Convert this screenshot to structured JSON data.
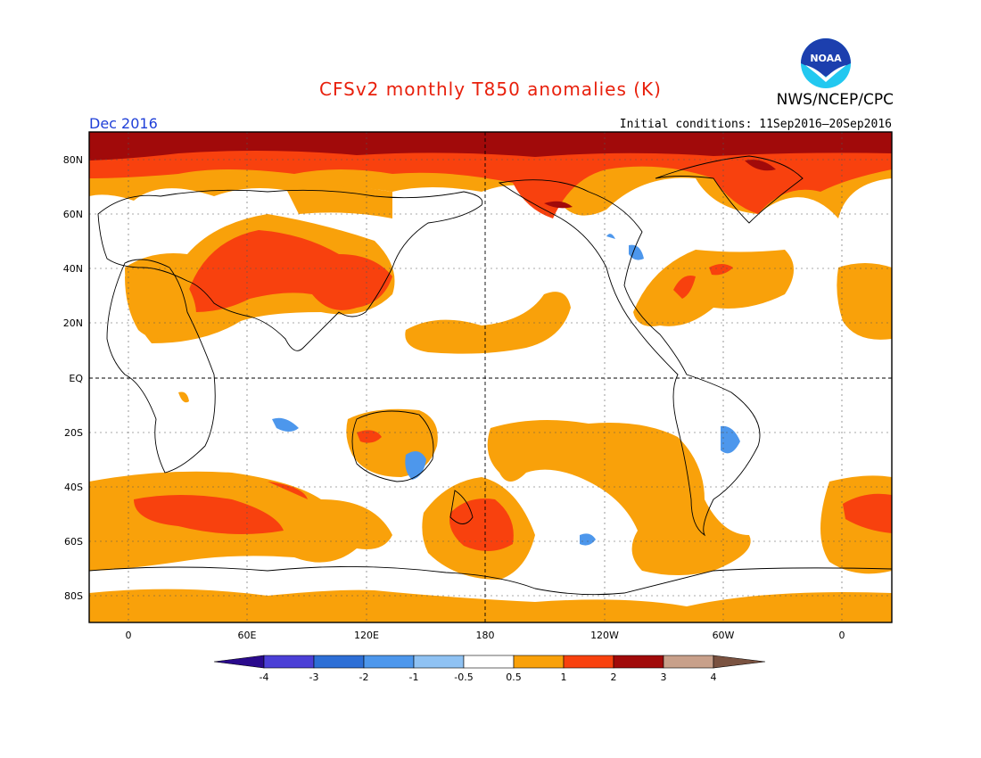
{
  "header": {
    "title": "CFSv2 monthly T850 anomalies (K)",
    "agency": "NWS/NCEP/CPC",
    "logo_text": "NOAA",
    "month": "Dec 2016",
    "initial_conditions": "Initial conditions: 11Sep2016–20Sep2016"
  },
  "axes": {
    "lat_labels": [
      "80N",
      "60N",
      "40N",
      "20N",
      "EQ",
      "20S",
      "40S",
      "60S",
      "80S"
    ],
    "lon_labels": [
      "0",
      "60E",
      "120E",
      "180",
      "120W",
      "60W",
      "0"
    ]
  },
  "legend": {
    "ticks": [
      "-4",
      "-3",
      "-2",
      "-1",
      "-0.5",
      "0.5",
      "1",
      "2",
      "3",
      "4"
    ],
    "colors": [
      "#2a0a8c",
      "#4b3fd6",
      "#2d6fd6",
      "#4d97ec",
      "#8fc2f3",
      "#ffffff",
      "#f9a10a",
      "#f8410e",
      "#a10a0a",
      "#c8a08a",
      "#7a5240"
    ]
  }
}
